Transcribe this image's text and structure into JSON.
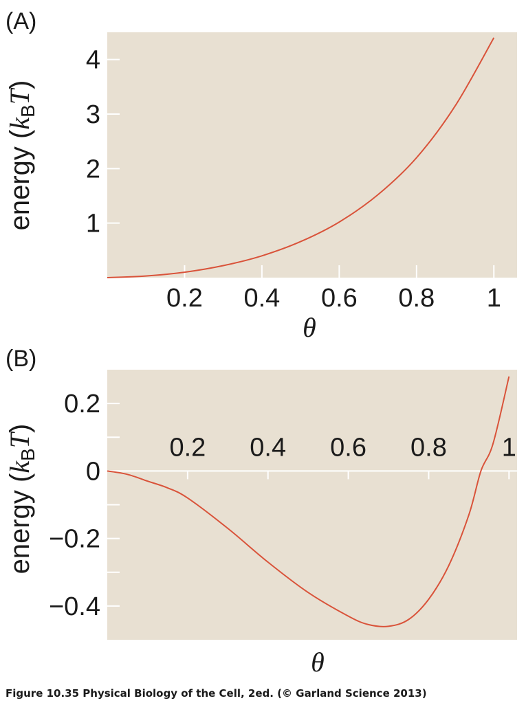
{
  "caption": "Figure 10.35  Physical Biology of the Cell, 2ed. (© Garland Science 2013)",
  "colors": {
    "background": "#e8e0d2",
    "curve": "#d9533a",
    "axis": "#ffffff",
    "text": "#1a1a1a"
  },
  "chart_data": [
    {
      "type": "line",
      "panel_label": "(A)",
      "xlabel": "θ",
      "ylabel_prefix": "energy (",
      "ylabel_k": "k",
      "ylabel_sub": "B",
      "ylabel_T": "T",
      "ylabel_suffix": ")",
      "xlim": [
        0,
        1.06
      ],
      "ylim": [
        0,
        4.5
      ],
      "grid": false,
      "xticks": [
        {
          "value": 0.2,
          "label": "0.2"
        },
        {
          "value": 0.4,
          "label": "0.4"
        },
        {
          "value": 0.6,
          "label": "0.6"
        },
        {
          "value": 0.8,
          "label": "0.8"
        },
        {
          "value": 1.0,
          "label": "1"
        }
      ],
      "yticks": [
        {
          "value": 1,
          "label": "1"
        },
        {
          "value": 2,
          "label": "2"
        },
        {
          "value": 3,
          "label": "3"
        },
        {
          "value": 4,
          "label": "4"
        }
      ],
      "series": [
        {
          "x": [
            0,
            0.1,
            0.2,
            0.3,
            0.4,
            0.5,
            0.6,
            0.7,
            0.8,
            0.9,
            1.0
          ],
          "y": [
            0,
            0.03,
            0.1,
            0.22,
            0.4,
            0.66,
            1.02,
            1.52,
            2.2,
            3.15,
            4.4
          ]
        }
      ]
    },
    {
      "type": "line",
      "panel_label": "(B)",
      "xlabel": "θ",
      "ylabel_prefix": "energy (",
      "ylabel_k": "k",
      "ylabel_sub": "B",
      "ylabel_T": "T",
      "ylabel_suffix": ")",
      "xlim": [
        0,
        1.02
      ],
      "ylim": [
        -0.5,
        0.3
      ],
      "grid": false,
      "xticks": [
        {
          "value": 0.2,
          "label": "0.2"
        },
        {
          "value": 0.4,
          "label": "0.4"
        },
        {
          "value": 0.6,
          "label": "0.6"
        },
        {
          "value": 0.8,
          "label": "0.8"
        },
        {
          "value": 1.0,
          "label": "1"
        }
      ],
      "yticks": [
        {
          "value": 0.2,
          "label": "0.2"
        },
        {
          "value": 0,
          "label": "0"
        },
        {
          "value": -0.2,
          "label": "−0.2"
        },
        {
          "value": -0.4,
          "label": "−0.4"
        }
      ],
      "minor_yticks": [
        0.1,
        -0.1,
        -0.3
      ],
      "series": [
        {
          "x": [
            0,
            0.05,
            0.1,
            0.15,
            0.2,
            0.3,
            0.4,
            0.5,
            0.6,
            0.65,
            0.7,
            0.75,
            0.8,
            0.85,
            0.9,
            0.93,
            0.96,
            1.0
          ],
          "y": [
            0,
            -0.01,
            -0.03,
            -0.05,
            -0.08,
            -0.17,
            -0.27,
            -0.36,
            -0.43,
            -0.455,
            -0.46,
            -0.44,
            -0.38,
            -0.28,
            -0.13,
            0.0,
            0.08,
            0.28
          ]
        }
      ]
    }
  ]
}
